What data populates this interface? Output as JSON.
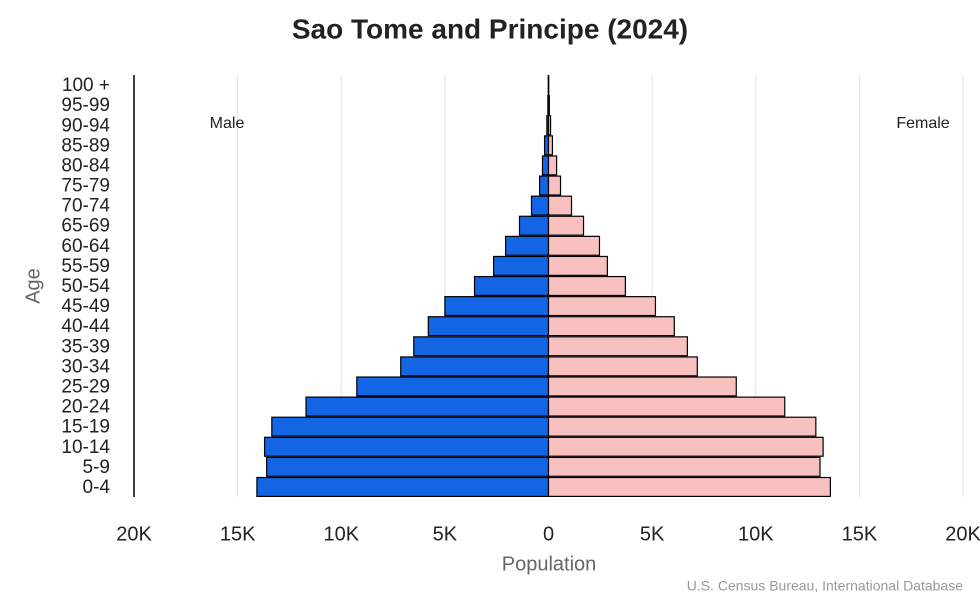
{
  "chart_data": {
    "type": "pyramid",
    "title": "Sao Tome and Principe (2024)",
    "xlabel": "Population",
    "ylabel": "Age",
    "source": "U.S. Census Bureau, International Database",
    "categories": [
      "0-4",
      "5-9",
      "10-14",
      "15-19",
      "20-24",
      "25-29",
      "30-34",
      "35-39",
      "40-44",
      "45-49",
      "50-54",
      "55-59",
      "60-64",
      "65-69",
      "70-74",
      "75-79",
      "80-84",
      "85-89",
      "90-94",
      "95-99",
      "100 +"
    ],
    "series": [
      {
        "name": "Male",
        "color": "#1464e6",
        "values": [
          14070,
          13600,
          13700,
          13350,
          11700,
          9250,
          7130,
          6500,
          5800,
          5000,
          3570,
          2650,
          2070,
          1400,
          820,
          430,
          290,
          190,
          80,
          30,
          10
        ]
      },
      {
        "name": "Female",
        "color": "#f9c0c0",
        "values": [
          13600,
          13100,
          13250,
          12900,
          11400,
          9060,
          7180,
          6700,
          6070,
          5160,
          3710,
          2840,
          2460,
          1690,
          1110,
          580,
          390,
          190,
          100,
          40,
          10
        ]
      }
    ],
    "xlim": [
      -20000,
      20000
    ],
    "xticks": [
      {
        "value": -20000,
        "label": "20K"
      },
      {
        "value": -15000,
        "label": "15K"
      },
      {
        "value": -10000,
        "label": "10K"
      },
      {
        "value": -5000,
        "label": "5K"
      },
      0,
      {
        "value": 5000,
        "label": "5K"
      },
      {
        "value": 10000,
        "label": "10K"
      },
      {
        "value": 15000,
        "label": "15K"
      },
      {
        "value": 20000,
        "label": "20K"
      }
    ],
    "grid": true
  }
}
